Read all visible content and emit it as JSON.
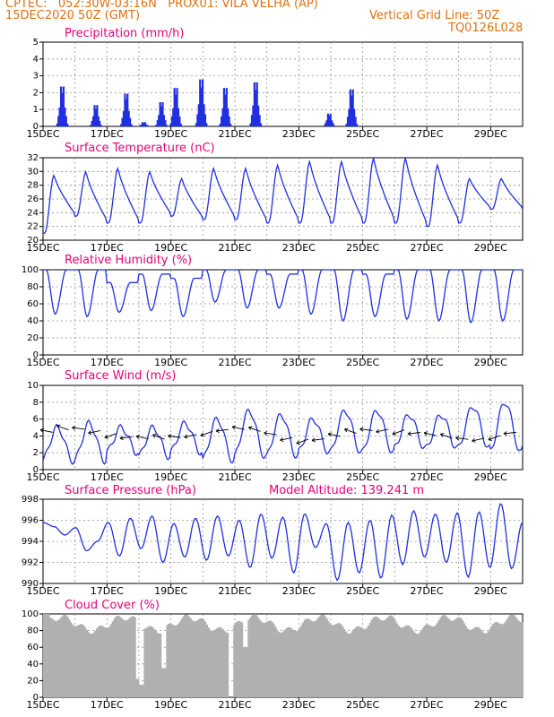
{
  "header": {
    "left_line1": "CPTEC:   052:30W-03:16N   PROX01: VILA VELHA (AP)",
    "left_line2": "15DEC2020 50Z (GMT)",
    "right_line2": "Vertical Grid Line: 50Z",
    "right_line3": "TQ0126L028"
  },
  "colors": {
    "header": "#e07010",
    "title": "#e8007a",
    "series": "#2030e0",
    "bars": "#2030e0",
    "cloud": "#b0b0b0",
    "grid": "#909090"
  },
  "date_labels": [
    "15DEC",
    "17DEC",
    "19DEC",
    "21DEC",
    "23DEC",
    "25DEC",
    "27DEC",
    "29DEC"
  ],
  "model_altitude": "Model Altitude: 139.241 m",
  "chart_data": [
    {
      "type": "bar",
      "title": "Precipitation (mm/h)",
      "ylim": [
        0,
        5
      ],
      "yticks": [
        "0",
        "1",
        "2",
        "3",
        "4",
        "5"
      ],
      "events": [
        [
          0.6,
          2.8
        ],
        [
          1.65,
          1.5
        ],
        [
          2.6,
          2.3
        ],
        [
          3.15,
          0.3
        ],
        [
          3.7,
          1.7
        ],
        [
          4.15,
          2.7
        ],
        [
          4.95,
          3.3
        ],
        [
          5.7,
          2.7
        ],
        [
          6.65,
          3.1
        ],
        [
          8.95,
          0.9
        ],
        [
          9.65,
          2.6
        ]
      ]
    },
    {
      "type": "line",
      "title": "Surface Temperature (nC)",
      "ylim": [
        20,
        32
      ],
      "yticks": [
        "20",
        "22",
        "24",
        "26",
        "28",
        "30",
        "32"
      ],
      "maxima": [
        29.5,
        30.0,
        30.5,
        30.0,
        29.0,
        30.5,
        30.5,
        31.0,
        31.5,
        31.5,
        32.0,
        32.0,
        31.0,
        29.0
      ],
      "minima": [
        21.0,
        23.5,
        22.5,
        22.5,
        23.5,
        23.0,
        23.0,
        22.5,
        22.5,
        22.5,
        22.5,
        22.5,
        22.0,
        22.5,
        24.5
      ]
    },
    {
      "type": "line",
      "title": "Relative Humidity (%)",
      "ylim": [
        0,
        100
      ],
      "yticks": [
        "0",
        "20",
        "40",
        "60",
        "80",
        "100"
      ],
      "minima": [
        48,
        45,
        50,
        52,
        45,
        62,
        55,
        55,
        48,
        40,
        45,
        42,
        40,
        38,
        40,
        50,
        65
      ],
      "maxima": [
        100,
        100,
        85,
        95,
        90,
        100,
        100,
        95,
        100,
        100,
        95,
        100,
        100,
        100,
        100,
        100
      ]
    },
    {
      "type": "line",
      "title": "Surface Wind (m/s)",
      "ylim": [
        0,
        10
      ],
      "yticks": [
        "0",
        "2",
        "4",
        "6",
        "8",
        "10"
      ],
      "maxima": [
        5.0,
        5.5,
        5.0,
        5.0,
        5.5,
        6.0,
        7.0,
        6.5,
        6.0,
        7.0,
        7.0,
        6.5,
        6.5,
        7.5,
        8.0,
        7.5,
        7.5
      ],
      "minima": [
        1.0,
        1.0,
        2.0,
        1.5,
        2.0,
        1.0,
        1.5,
        1.5,
        2.0,
        2.0,
        2.0,
        2.5,
        2.5,
        2.5,
        2.0,
        2.5,
        3.0
      ]
    },
    {
      "type": "line",
      "title": "Surface Pressure (hPa)",
      "ylim": [
        990,
        998
      ],
      "yticks": [
        "990",
        "992",
        "994",
        "996",
        "998"
      ],
      "series_values": [
        995.8,
        995.4,
        994.6,
        995.3,
        993.1,
        994.0,
        995.8,
        992.6,
        996.2,
        993.3,
        996.4,
        992.0,
        995.7,
        992.5,
        996.2,
        992.2,
        996.4,
        992.6,
        996.0,
        991.5,
        996.6,
        992.4,
        996.3,
        991.0,
        996.6,
        993.4,
        995.7,
        990.3,
        995.8,
        991.0,
        996.0,
        990.5,
        996.5,
        991.8,
        996.9,
        992.5,
        996.6,
        992.0,
        996.7,
        990.6,
        996.8,
        991.5,
        997.6,
        991.4,
        995.8
      ]
    },
    {
      "type": "bar",
      "title": "Cloud Cover (%)",
      "ylim": [
        0,
        100
      ],
      "yticks": [
        "0",
        "20",
        "40",
        "60",
        "80",
        "100"
      ],
      "dips": [
        [
          2.95,
          22
        ],
        [
          3.05,
          15
        ],
        [
          3.75,
          35
        ],
        [
          5.85,
          0
        ],
        [
          6.3,
          60
        ]
      ]
    }
  ]
}
